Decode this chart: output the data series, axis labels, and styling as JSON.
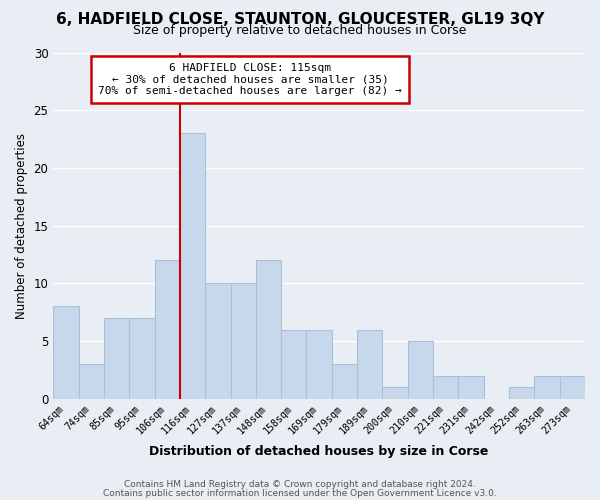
{
  "title": "6, HADFIELD CLOSE, STAUNTON, GLOUCESTER, GL19 3QY",
  "subtitle": "Size of property relative to detached houses in Corse",
  "xlabel": "Distribution of detached houses by size in Corse",
  "ylabel": "Number of detached properties",
  "bar_color": "#c8d8ec",
  "bar_edgecolor": "#a8c0d8",
  "categories": [
    "64sqm",
    "74sqm",
    "85sqm",
    "95sqm",
    "106sqm",
    "116sqm",
    "127sqm",
    "137sqm",
    "148sqm",
    "158sqm",
    "169sqm",
    "179sqm",
    "189sqm",
    "200sqm",
    "210sqm",
    "221sqm",
    "231sqm",
    "242sqm",
    "252sqm",
    "263sqm",
    "273sqm"
  ],
  "values": [
    8,
    3,
    7,
    7,
    12,
    23,
    10,
    10,
    12,
    6,
    6,
    3,
    6,
    1,
    5,
    2,
    2,
    0,
    1,
    2,
    2
  ],
  "highlight_bar_index": 5,
  "annotation_title": "6 HADFIELD CLOSE: 115sqm",
  "annotation_line1": "← 30% of detached houses are smaller (35)",
  "annotation_line2": "70% of semi-detached houses are larger (82) →",
  "annotation_box_edgecolor": "#cc0000",
  "vline_color": "#cc0000",
  "ylim": [
    0,
    30
  ],
  "yticks": [
    0,
    5,
    10,
    15,
    20,
    25,
    30
  ],
  "footer1": "Contains HM Land Registry data © Crown copyright and database right 2024.",
  "footer2": "Contains public sector information licensed under the Open Government Licence v3.0.",
  "background_color": "#e8eef4",
  "grid_color": "#ffffff",
  "title_fontsize": 11,
  "subtitle_fontsize": 9
}
